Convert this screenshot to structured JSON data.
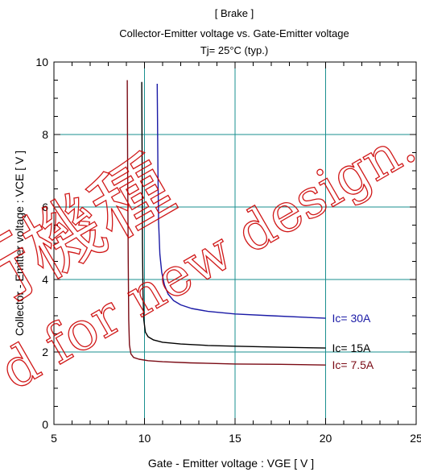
{
  "chart_data": {
    "type": "line",
    "title": "[ Brake ]",
    "subtitle": "Collector-Emitter voltage  vs. Gate-Emitter voltage",
    "condition": "Tj= 25°C  (typ.)",
    "xlabel": "Gate - Emitter voltage  :  VGE  [ V ]",
    "ylabel": "Collector - Emitter voltage  :  VCE  [ V ]",
    "xlim": [
      5,
      25
    ],
    "ylim": [
      0,
      10
    ],
    "xticks": [
      "5",
      "10",
      "15",
      "20",
      "25"
    ],
    "yticks": [
      "0",
      "2",
      "4",
      "6",
      "8",
      "10"
    ],
    "grid": true,
    "series": [
      {
        "name": "Ic= 30A",
        "color": "#1a1aa6",
        "x": [
          10.7,
          10.74,
          10.78,
          10.85,
          10.95,
          11.1,
          11.3,
          11.6,
          12.0,
          12.6,
          13.5,
          15.0,
          17.0,
          20.0
        ],
        "y": [
          9.4,
          7.0,
          5.6,
          4.7,
          4.2,
          3.85,
          3.6,
          3.42,
          3.3,
          3.2,
          3.12,
          3.05,
          3.0,
          2.93
        ]
      },
      {
        "name": "Ic= 15A",
        "color": "#000000",
        "x": [
          9.85,
          9.87,
          9.89,
          9.92,
          9.96,
          10.05,
          10.2,
          10.5,
          11.0,
          12.0,
          13.5,
          15.0,
          17.5,
          20.0
        ],
        "y": [
          9.45,
          7.0,
          5.0,
          3.6,
          2.9,
          2.55,
          2.42,
          2.33,
          2.27,
          2.22,
          2.18,
          2.16,
          2.13,
          2.11
        ]
      },
      {
        "name": "Ic= 7.5A",
        "color": "#7a0a14",
        "x": [
          9.05,
          9.07,
          9.1,
          9.13,
          9.17,
          9.25,
          9.4,
          9.7,
          10.2,
          11.0,
          12.5,
          15.0,
          17.5,
          20.0
        ],
        "y": [
          9.5,
          7.0,
          4.5,
          2.9,
          2.2,
          1.95,
          1.85,
          1.8,
          1.76,
          1.73,
          1.7,
          1.67,
          1.66,
          1.64
        ]
      }
    ]
  },
  "watermark": {
    "line1": "行機種",
    "line2": "d for new design.",
    "color": "#cc0000"
  }
}
